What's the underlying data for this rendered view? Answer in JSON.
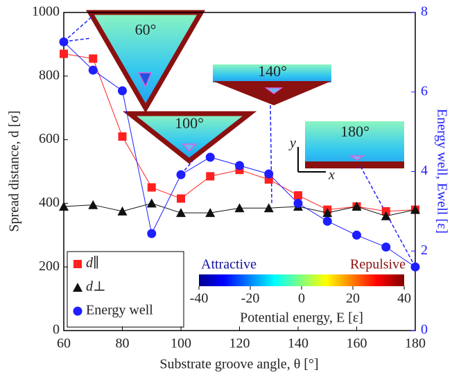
{
  "chart_data": {
    "type": "line",
    "x_label": "Substrate groove angle, θ [°]",
    "y_label": "Spread distance, d [σ]",
    "y2_label": "Energy well, Ewell [ε]",
    "x": [
      60,
      70,
      80,
      90,
      100,
      110,
      120,
      130,
      140,
      150,
      160,
      170,
      180
    ],
    "xlim": [
      60,
      180
    ],
    "xticks": [
      60,
      80,
      100,
      120,
      140,
      160,
      180
    ],
    "ylim": [
      0,
      1000
    ],
    "yticks": [
      0,
      200,
      400,
      600,
      800,
      1000
    ],
    "y2lim": [
      0,
      8
    ],
    "y2ticks": [
      0,
      2,
      4,
      6,
      8
    ],
    "legend": "lower left",
    "series": [
      {
        "name": "d∥",
        "color": "#ff2020",
        "marker": "square",
        "values": [
          870,
          855,
          610,
          450,
          415,
          485,
          505,
          475,
          425,
          380,
          390,
          375,
          380
        ]
      },
      {
        "name": "d⊥",
        "color": "#111111",
        "marker": "triangle",
        "values": [
          390,
          395,
          375,
          400,
          370,
          370,
          385,
          385,
          390,
          370,
          390,
          360,
          380
        ]
      },
      {
        "name": "Energy well",
        "color": "#1e1eff",
        "marker": "circle",
        "axis": "y2",
        "values": [
          7.26,
          6.55,
          6.03,
          2.44,
          3.92,
          4.36,
          4.15,
          3.94,
          3.2,
          2.75,
          2.4,
          2.1,
          1.6
        ]
      }
    ],
    "annotations": [
      "60°",
      "100°",
      "140°",
      "180°"
    ],
    "inset_axes": [
      "y",
      "x"
    ],
    "colorbar": {
      "low_label": "Attractive",
      "high_label": "Repulsive",
      "lim": [
        -40,
        40
      ],
      "ticks": [
        -40,
        -20,
        0,
        20,
        40
      ],
      "label": "Potential energy, E [ε]"
    }
  }
}
